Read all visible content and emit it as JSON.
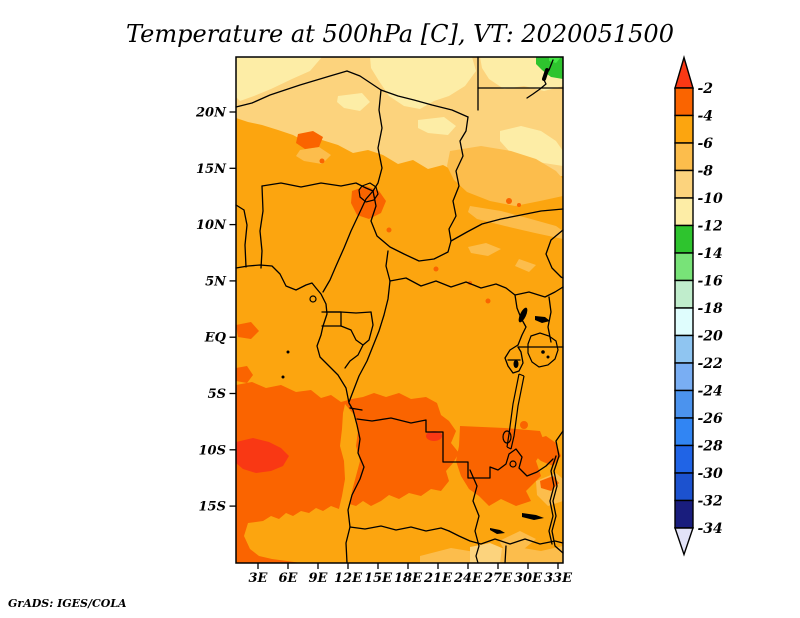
{
  "title": "Temperature at 500hPa [C], VT: 2020051500",
  "credit": "GrADS: IGES/COLA",
  "axes": {
    "lat_labels": [
      "20N",
      "15N",
      "10N",
      "5N",
      "EQ",
      "5S",
      "10S",
      "15S"
    ],
    "lon_labels": [
      "3E",
      "6E",
      "9E",
      "12E",
      "15E",
      "18E",
      "21E",
      "24E",
      "27E",
      "30E",
      "33E"
    ]
  },
  "colorbar": {
    "tick_labels": [
      "-2",
      "-4",
      "-6",
      "-8",
      "-10",
      "-12",
      "-14",
      "-16",
      "-18",
      "-20",
      "-22",
      "-24",
      "-26",
      "-28",
      "-30",
      "-32",
      "-34"
    ],
    "top_arrow_color": "#f93814",
    "bottom_arrow_color": "#e3e3f8",
    "segment_colors": [
      "#fa6400",
      "#fca50f",
      "#fcbd4c",
      "#fcd37d",
      "#fdeda6",
      "#2ec42e",
      "#78e378",
      "#c0edcc",
      "#dffdfd",
      "#8fc5f1",
      "#79aef3",
      "#4b93ee",
      "#3185f3",
      "#2064e6",
      "#1c52cf",
      "#191d7d"
    ]
  },
  "palette": {
    "red": "#f93814",
    "orange_red": "#fa6400",
    "orange": "#fca50f",
    "light_orange": "#fcbd4c",
    "pale_orange": "#fcd37d",
    "pale_yellow": "#fdeda6",
    "green": "#2ec42e",
    "bright_green": "#45e845"
  },
  "chart_data": {
    "type": "heatmap",
    "title": "Temperature at 500hPa [C], VT: 2020051500",
    "variable": "Temperature at 500 hPa",
    "units": "C",
    "valid_time": "2020051500",
    "region": {
      "lon_min": "0E",
      "lon_max": "34E",
      "lat_min": "20S",
      "lat_max": "25N"
    },
    "contour_levels": [
      -34,
      -32,
      -30,
      -28,
      -26,
      -24,
      -22,
      -20,
      -18,
      -16,
      -14,
      -12,
      -10,
      -8,
      -6,
      -4,
      -2
    ],
    "field_summary": [
      {
        "area": "north band (18N-25N, Sahara/Libya/Egypt)",
        "value_range": "-12 to -8"
      },
      {
        "area": "extreme northeast corner",
        "value_range": "-16 to -12 (green)"
      },
      {
        "area": "central band (Sahel to equator)",
        "value_range": "-6 to -4"
      },
      {
        "area": "southwest Atlantic and Angola",
        "value_range": "-4 to -2"
      },
      {
        "area": "small patch off southwest coast",
        "value_range": "warmer than -2"
      },
      {
        "area": "southeast corner",
        "value_range": "-8 to -6"
      }
    ],
    "legend_position": "right vertical color bar with end arrows",
    "grid": false
  }
}
